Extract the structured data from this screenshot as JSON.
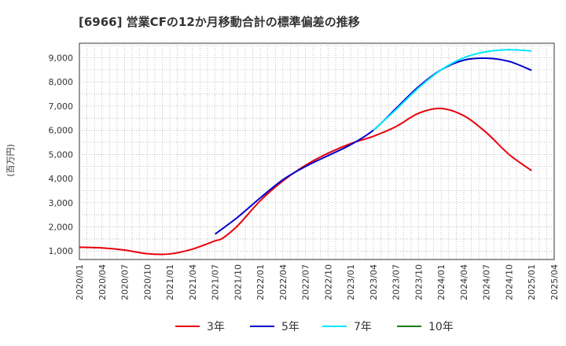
{
  "chart_data": {
    "type": "line",
    "title": "[6966]  営業CFの12か月移動合計の標準偏差の推移",
    "ylabel": "(百万円)",
    "xlabel": "",
    "ylim": [
      650,
      9600
    ],
    "xlim": [
      "2020-01",
      "2025-04"
    ],
    "y_ticks": [
      "1,000",
      "2,000",
      "3,000",
      "4,000",
      "5,000",
      "6,000",
      "7,000",
      "8,000",
      "9,000"
    ],
    "x_ticks": [
      "2020/01",
      "2020/04",
      "2020/07",
      "2020/10",
      "2021/01",
      "2021/04",
      "2021/07",
      "2021/10",
      "2022/01",
      "2022/04",
      "2022/07",
      "2022/10",
      "2023/01",
      "2023/04",
      "2023/07",
      "2023/10",
      "2024/01",
      "2024/04",
      "2024/07",
      "2024/10",
      "2025/01",
      "2025/04"
    ],
    "grid": true,
    "legend_position": "bottom",
    "series": [
      {
        "name": "3年",
        "color": "#e8000b",
        "points": [
          [
            "2020-01",
            1160
          ],
          [
            "2020-04",
            1130
          ],
          [
            "2020-07",
            1040
          ],
          [
            "2020-10",
            890
          ],
          [
            "2021-01",
            880
          ],
          [
            "2021-04",
            1080
          ],
          [
            "2021-07",
            1420
          ],
          [
            "2021-08",
            1530
          ],
          [
            "2021-10",
            2050
          ],
          [
            "2022-01",
            3080
          ],
          [
            "2022-04",
            3900
          ],
          [
            "2022-07",
            4550
          ],
          [
            "2022-10",
            5050
          ],
          [
            "2023-01",
            5450
          ],
          [
            "2023-04",
            5750
          ],
          [
            "2023-07",
            6150
          ],
          [
            "2023-10",
            6700
          ],
          [
            "2024-01",
            6900
          ],
          [
            "2024-04",
            6600
          ],
          [
            "2024-07",
            5900
          ],
          [
            "2024-10",
            5000
          ],
          [
            "2025-01",
            4330
          ]
        ]
      },
      {
        "name": "5年",
        "color": "#0000cc",
        "points": [
          [
            "2021-07",
            1700
          ],
          [
            "2021-10",
            2400
          ],
          [
            "2022-01",
            3200
          ],
          [
            "2022-04",
            3950
          ],
          [
            "2022-07",
            4500
          ],
          [
            "2022-10",
            4950
          ],
          [
            "2023-01",
            5400
          ],
          [
            "2023-04",
            6000
          ],
          [
            "2023-07",
            6900
          ],
          [
            "2023-10",
            7800
          ],
          [
            "2024-01",
            8500
          ],
          [
            "2024-04",
            8900
          ],
          [
            "2024-07",
            8980
          ],
          [
            "2024-10",
            8850
          ],
          [
            "2025-01",
            8480
          ]
        ]
      },
      {
        "name": "7年",
        "color": "#00e5ff",
        "points": [
          [
            "2023-04",
            6000
          ],
          [
            "2023-07",
            6850
          ],
          [
            "2023-10",
            7750
          ],
          [
            "2024-01",
            8500
          ],
          [
            "2024-04",
            9000
          ],
          [
            "2024-07",
            9250
          ],
          [
            "2024-10",
            9330
          ],
          [
            "2025-01",
            9280
          ]
        ]
      },
      {
        "name": "10年",
        "color": "#1a7a1a",
        "points": []
      }
    ]
  }
}
